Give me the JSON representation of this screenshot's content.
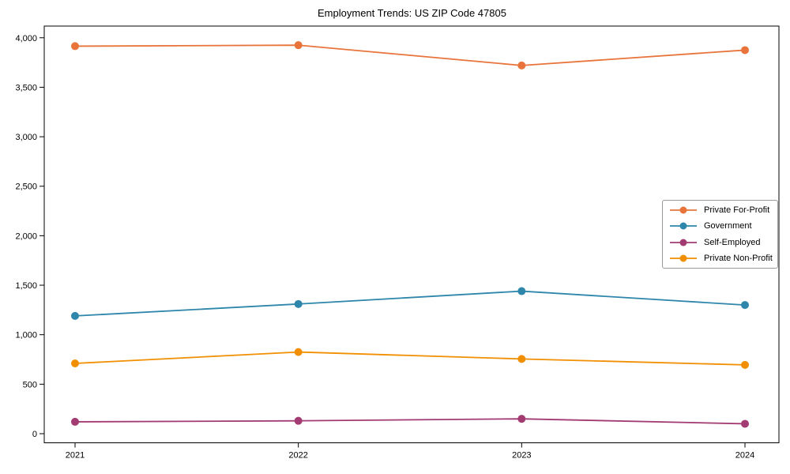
{
  "figure": {
    "title": "Employment Trends: US ZIP Code 47805"
  },
  "chart_data": {
    "type": "line",
    "title": "Employment Trends: US ZIP Code 47805",
    "categories": [
      "2021",
      "2022",
      "2023",
      "2024"
    ],
    "series": [
      {
        "name": "Private For-Profit",
        "color": "#E8743B",
        "values": [
          3915,
          3925,
          3720,
          3875
        ]
      },
      {
        "name": "Government",
        "color": "#2E86AB",
        "values": [
          1190,
          1310,
          1440,
          1300
        ]
      },
      {
        "name": "Self-Employed",
        "color": "#A23B72",
        "values": [
          120,
          130,
          150,
          100
        ]
      },
      {
        "name": "Private Non-Profit",
        "color": "#F18F01",
        "values": [
          710,
          825,
          755,
          695
        ]
      }
    ],
    "xlabel": "",
    "ylabel": "",
    "ylim": [
      -92,
      4118
    ],
    "yticks": [
      0,
      500,
      1000,
      1500,
      2000,
      2500,
      3000,
      3500,
      4000
    ],
    "legend_position": "center-right",
    "grid": false,
    "marker": "circle",
    "axis_color": "#000000",
    "background_color": "#ffffff"
  }
}
